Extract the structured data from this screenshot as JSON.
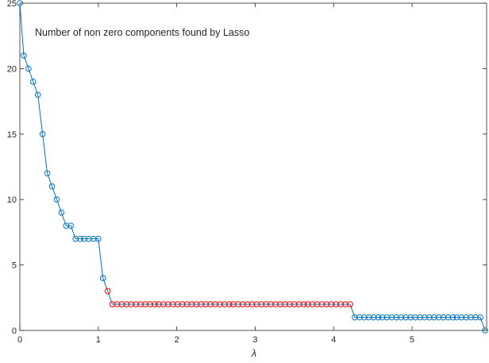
{
  "chart_data": {
    "type": "line",
    "title": "",
    "annotation": "Number of non zero components found by Lasso",
    "xlabel": "λ",
    "ylabel": "",
    "xlim": [
      0,
      5.95
    ],
    "ylim": [
      0,
      25
    ],
    "xticks": [
      0,
      1,
      2,
      3,
      4,
      5
    ],
    "yticks": [
      0,
      5,
      10,
      15,
      20,
      25
    ],
    "grid": false,
    "line_color": "#0072bd",
    "highlight_color": "#ff0000",
    "series": [
      {
        "x": [
          0.0,
          0.05,
          0.11,
          0.17,
          0.23,
          0.29,
          0.35,
          0.41,
          0.47,
          0.53,
          0.59,
          0.65,
          0.71,
          0.77,
          0.82,
          0.88,
          0.94,
          1.0,
          1.06,
          1.12,
          1.18,
          1.24,
          1.3,
          1.36,
          1.42,
          1.48,
          1.54,
          1.6,
          1.66,
          1.72,
          1.77,
          1.83,
          1.89,
          1.95,
          2.01,
          2.07,
          2.13,
          2.19,
          2.25,
          2.31,
          2.37,
          2.43,
          2.49,
          2.55,
          2.61,
          2.67,
          2.72,
          2.78,
          2.84,
          2.9,
          2.96,
          3.02,
          3.08,
          3.14,
          3.2,
          3.26,
          3.32,
          3.38,
          3.44,
          3.5,
          3.56,
          3.62,
          3.67,
          3.73,
          3.79,
          3.85,
          3.91,
          3.97,
          4.03,
          4.09,
          4.15,
          4.21,
          4.27,
          4.33,
          4.39,
          4.45,
          4.51,
          4.57,
          4.62,
          4.68,
          4.74,
          4.8,
          4.86,
          4.92,
          4.98,
          5.04,
          5.1,
          5.16,
          5.22,
          5.28,
          5.34,
          5.4,
          5.46,
          5.52,
          5.57,
          5.63,
          5.69,
          5.75,
          5.81,
          5.87,
          5.93
        ],
        "y": [
          25,
          21,
          20,
          19,
          18,
          15,
          12,
          11,
          10,
          9,
          8,
          8,
          7,
          7,
          7,
          7,
          7,
          7,
          4,
          3,
          2,
          2,
          2,
          2,
          2,
          2,
          2,
          2,
          2,
          2,
          2,
          2,
          2,
          2,
          2,
          2,
          2,
          2,
          2,
          2,
          2,
          2,
          2,
          2,
          2,
          2,
          2,
          2,
          2,
          2,
          2,
          2,
          2,
          2,
          2,
          2,
          2,
          2,
          2,
          2,
          2,
          2,
          2,
          2,
          2,
          2,
          2,
          2,
          2,
          2,
          2,
          2,
          1,
          1,
          1,
          1,
          1,
          1,
          1,
          1,
          1,
          1,
          1,
          1,
          1,
          1,
          1,
          1,
          1,
          1,
          1,
          1,
          1,
          1,
          1,
          1,
          1,
          1,
          1,
          1,
          0
        ]
      }
    ],
    "highlight_range": [
      1.1,
      4.25
    ]
  }
}
